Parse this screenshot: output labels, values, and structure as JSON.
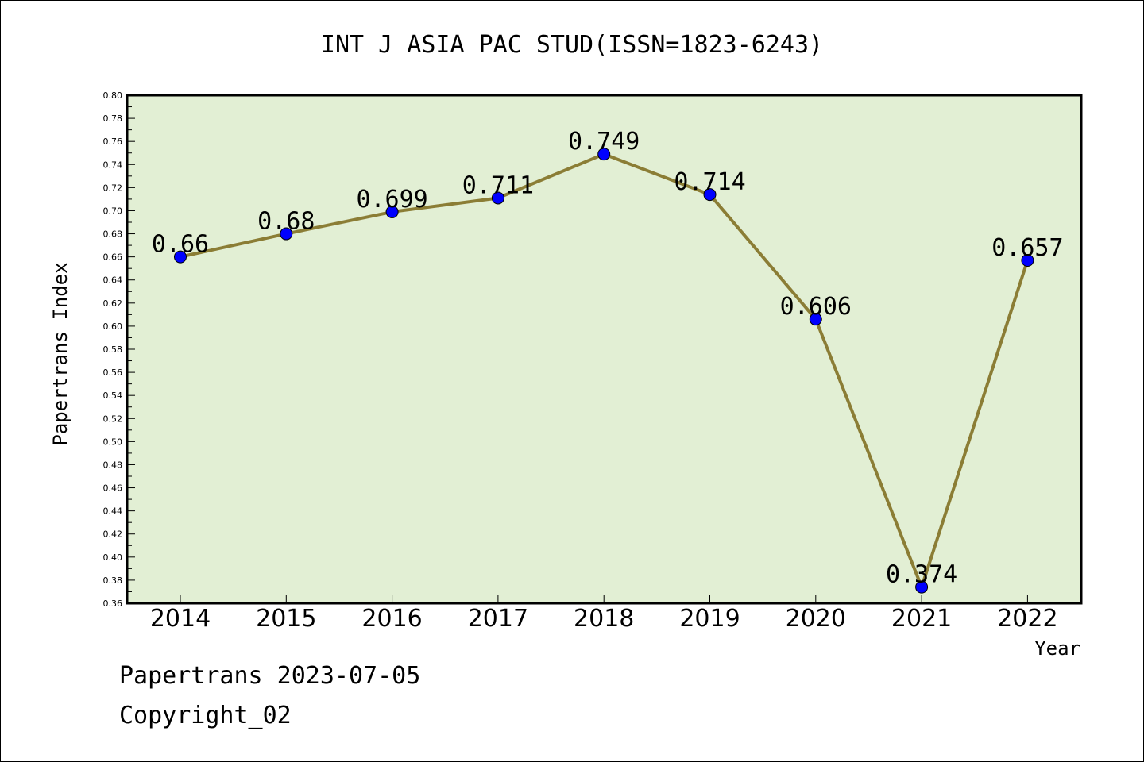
{
  "footer": {
    "line1": "Papertrans 2023-07-05",
    "line2": "Copyright_02"
  },
  "colors": {
    "plot_background": "#e2efd4",
    "line": "#8b7d35",
    "marker": "#0000ff",
    "border": "#000000"
  },
  "chart_data": {
    "type": "line",
    "title": "INT J ASIA PAC STUD(ISSN=1823-6243)",
    "xlabel": "Year",
    "ylabel": "Papertrans Index",
    "categories": [
      "2014",
      "2015",
      "2016",
      "2017",
      "2018",
      "2019",
      "2020",
      "2021",
      "2022"
    ],
    "series": [
      {
        "values": [
          0.66,
          0.68,
          0.699,
          0.711,
          0.749,
          0.714,
          0.606,
          0.374,
          0.657
        ],
        "labels": [
          "0.66",
          "0.68",
          "0.699",
          "0.711",
          "0.749",
          "0.714",
          "0.606",
          "0.374",
          "0.657"
        ]
      }
    ],
    "ylim": [
      0.36,
      0.8
    ],
    "yticks": [
      "0.36",
      "0.38",
      "0.40",
      "0.42",
      "0.44",
      "0.46",
      "0.48",
      "0.50",
      "0.52",
      "0.54",
      "0.56",
      "0.58",
      "0.60",
      "0.62",
      "0.64",
      "0.66",
      "0.68",
      "0.70",
      "0.72",
      "0.74",
      "0.76",
      "0.78",
      "0.80"
    ],
    "grid": false,
    "legend": "none"
  }
}
